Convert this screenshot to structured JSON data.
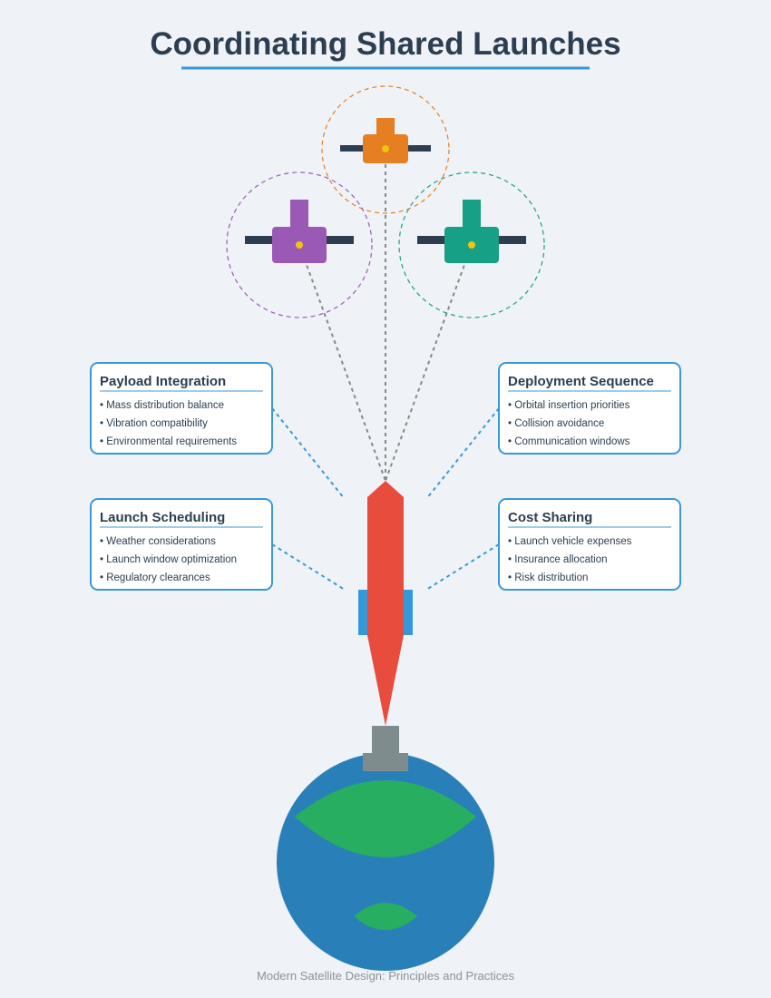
{
  "title": "Coordinating Shared Launches",
  "footer": "Modern Satellite Design: Principles and Practices",
  "colors": {
    "title_underline": "#3a98d8",
    "rocket_body": "#e74c3c",
    "rocket_fins": "#3498db",
    "launch_pad": "#7f8c8d",
    "earth_ocean": "#2980b9",
    "earth_land": "#27ae60",
    "satellite_top": "#e67e22",
    "satellite_left": "#9b59b6",
    "satellite_right": "#16a085",
    "solar_panel": "#2c3e50",
    "satellite_core": "#f1c40f",
    "connector": "#3a98d8"
  },
  "boxes": {
    "payload_integration": {
      "title": "Payload Integration",
      "items": [
        "• Mass distribution balance",
        "• Vibration compatibility",
        "• Environmental requirements"
      ]
    },
    "deployment_sequence": {
      "title": "Deployment Sequence",
      "items": [
        "• Orbital insertion priorities",
        "• Collision avoidance",
        "• Communication windows"
      ]
    },
    "launch_scheduling": {
      "title": "Launch Scheduling",
      "items": [
        "• Weather considerations",
        "• Launch window optimization",
        "• Regulatory clearances"
      ]
    },
    "cost_sharing": {
      "title": "Cost Sharing",
      "items": [
        "• Launch vehicle expenses",
        "• Insurance allocation",
        "• Risk distribution"
      ]
    }
  }
}
